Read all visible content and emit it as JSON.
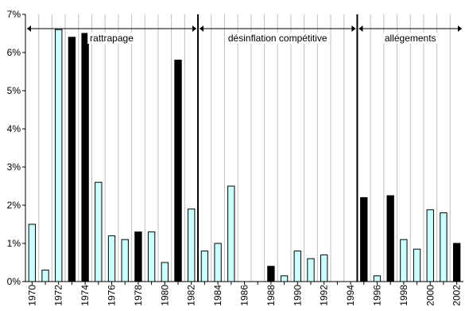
{
  "chart_data": {
    "type": "bar",
    "title": "",
    "xlabel": "",
    "ylabel": "",
    "ylim": [
      0,
      7
    ],
    "y_ticks": [
      "0%",
      "1%",
      "2%",
      "3%",
      "4%",
      "5%",
      "6%",
      "7%"
    ],
    "x_tick_labels": [
      "1970",
      "1972",
      "1974",
      "1976",
      "1978",
      "1980",
      "1982",
      "1984",
      "1986",
      "1988",
      "1990",
      "1992",
      "1994",
      "1996",
      "1998",
      "2000",
      "2002"
    ],
    "grid": "vertical",
    "years": [
      1970,
      1971,
      1972,
      1973,
      1974,
      1975,
      1976,
      1977,
      1978,
      1979,
      1980,
      1981,
      1982,
      1983,
      1984,
      1985,
      1986,
      1987,
      1988,
      1989,
      1990,
      1991,
      1992,
      1993,
      1994,
      1995,
      1996,
      1997,
      1998,
      1999,
      2000,
      2001,
      2002
    ],
    "values": [
      1.5,
      0.3,
      6.6,
      6.4,
      6.5,
      2.6,
      1.2,
      1.1,
      1.3,
      1.3,
      0.5,
      5.8,
      1.9,
      0.8,
      1.0,
      2.5,
      0,
      0,
      0.4,
      0.15,
      0.8,
      0.6,
      0.7,
      0,
      0,
      2.2,
      0.15,
      2.25,
      1.1,
      0.85,
      1.88,
      1.8,
      1.0
    ],
    "highlight_years": [
      1973,
      1974,
      1978,
      1981,
      1988,
      1995,
      1997,
      2002
    ],
    "periods": [
      {
        "label": "rattrapage",
        "start": 1969.5,
        "end": 1982.5
      },
      {
        "label": "désinflation compétitive",
        "start": 1982.5,
        "end": 1994.5
      },
      {
        "label": "allégements",
        "start": 1994.5,
        "end": 2002.5
      }
    ],
    "dividers": [
      1982.5,
      1994.5
    ],
    "colors": {
      "normal": "#CCFFFF",
      "highlight": "#000000",
      "outline": "#000000",
      "grid": "#C0C0C0"
    }
  }
}
